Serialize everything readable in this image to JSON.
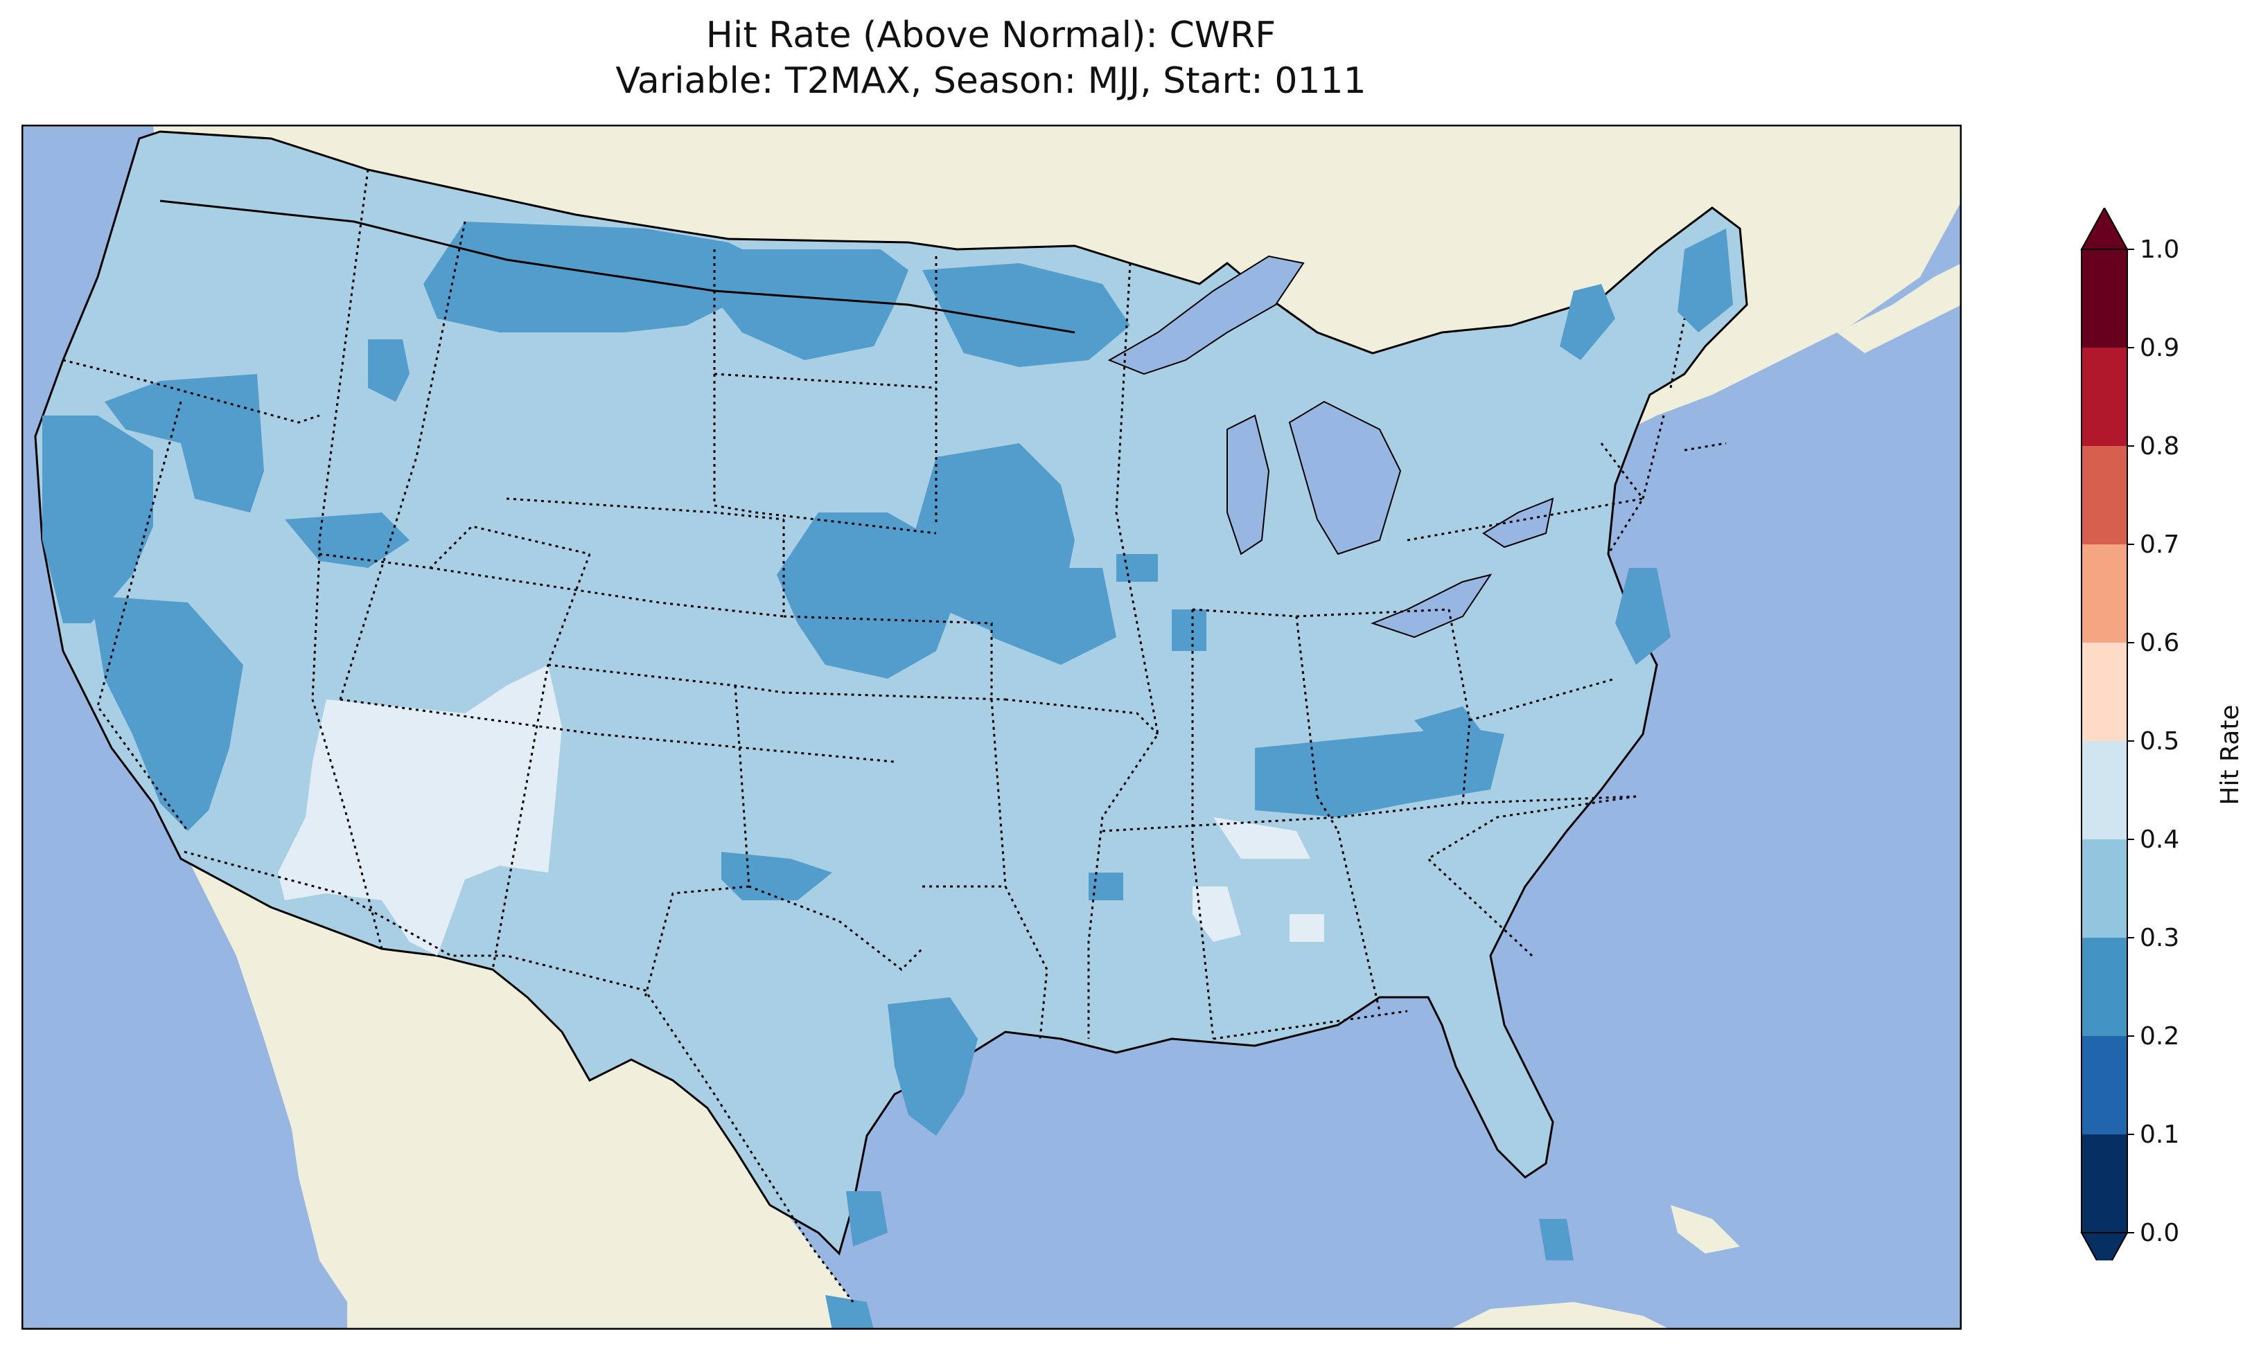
{
  "title": {
    "line1": "Hit Rate (Above Normal): CWRF",
    "line2": "Variable: T2MAX, Season: MJJ, Start: 0111"
  },
  "colors": {
    "ocean": "#97b6e1",
    "land": "#efefdb",
    "lake": "#97b6e1"
  },
  "colorbar": {
    "label": "Hit Rate",
    "ticks": [
      "0.0",
      "0.1",
      "0.2",
      "0.3",
      "0.4",
      "0.5",
      "0.6",
      "0.7",
      "0.8",
      "0.9",
      "1.0"
    ],
    "colors": [
      "#053061",
      "#2166ac",
      "#4393c3",
      "#92c5de",
      "#d1e5f0",
      "#fddbc7",
      "#f4a582",
      "#d6604d",
      "#b2182b",
      "#67001f"
    ],
    "extend": "both"
  },
  "field": {
    "dominant_bin": "0.3-0.4",
    "dominant_color": "#a9cfe4",
    "low_bin": "0.2-0.3",
    "low_color": "#529dcb",
    "high_bin": "0.4-0.5",
    "high_color": "#e2edf6"
  },
  "icons": {
    "map": "contus-map",
    "colorbar": "colorbar"
  }
}
